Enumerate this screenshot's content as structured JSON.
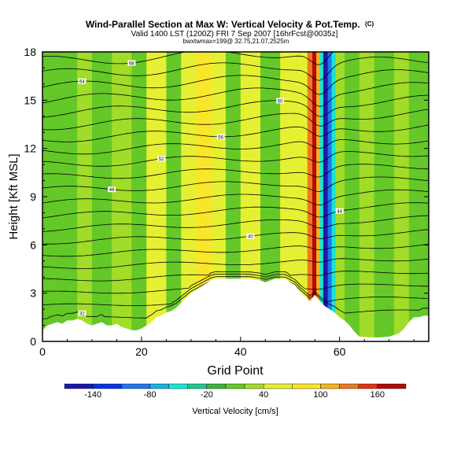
{
  "chart_data": {
    "type": "heatmap",
    "title": "Wind-Parallel Section at Max W: Vertical Velocity & Pot.Temp.",
    "title_mark": "(C)",
    "subtitle": "Valid 1400 LST (1200Z) FRI 7 Sep 2007 [16hrFcst@0035z]",
    "subtitle2": "bwxtwmax=199@ 32.75,21.07,2525m",
    "xlabel": "Grid Point",
    "ylabel": "Height [Kft MSL]",
    "xlim": [
      0,
      78
    ],
    "ylim": [
      0,
      18
    ],
    "xticks": [
      "0",
      "20",
      "40",
      "60"
    ],
    "xtick_values": [
      0,
      20,
      40,
      60
    ],
    "yticks": [
      "0",
      "3",
      "6",
      "9",
      "12",
      "15",
      "18"
    ],
    "ytick_values": [
      0,
      3,
      6,
      9,
      12,
      15,
      18
    ],
    "colorbar": {
      "label": "Vertical Velocity [cm/s]",
      "tick_labels": [
        "-140",
        "-80",
        "-20",
        "40",
        "100",
        "160"
      ],
      "tick_values": [
        -140,
        -80,
        -20,
        40,
        100,
        160
      ],
      "range": [
        -170,
        190
      ],
      "bins": [
        {
          "from": -170,
          "to": -140,
          "color": "#1a1aa8"
        },
        {
          "from": -140,
          "to": -110,
          "color": "#0a32e6"
        },
        {
          "from": -110,
          "to": -80,
          "color": "#1e78f0"
        },
        {
          "from": -80,
          "to": -60,
          "color": "#14b4e6"
        },
        {
          "from": -60,
          "to": -40,
          "color": "#19e6d2"
        },
        {
          "from": -40,
          "to": -20,
          "color": "#1ec88c"
        },
        {
          "from": -20,
          "to": 0,
          "color": "#3cb43c"
        },
        {
          "from": 0,
          "to": 20,
          "color": "#64c828"
        },
        {
          "from": 20,
          "to": 40,
          "color": "#a0dc28"
        },
        {
          "from": 40,
          "to": 70,
          "color": "#e6f032"
        },
        {
          "from": 70,
          "to": 100,
          "color": "#fae628"
        },
        {
          "from": 100,
          "to": 120,
          "color": "#f5b41e"
        },
        {
          "from": 120,
          "to": 140,
          "color": "#f0781e"
        },
        {
          "from": 140,
          "to": 160,
          "color": "#e63214"
        },
        {
          "from": 160,
          "to": 190,
          "color": "#b40a0a"
        }
      ]
    },
    "columns": [
      {
        "x0": 0,
        "x1": 4,
        "value": 10
      },
      {
        "x0": 4,
        "x1": 7,
        "value": 2
      },
      {
        "x0": 7,
        "x1": 10,
        "value": 35
      },
      {
        "x0": 10,
        "x1": 14,
        "value": 8
      },
      {
        "x0": 14,
        "x1": 18,
        "value": 30
      },
      {
        "x0": 18,
        "x1": 21,
        "value": 10
      },
      {
        "x0": 21,
        "x1": 25,
        "value": 45
      },
      {
        "x0": 25,
        "x1": 28,
        "value": 15
      },
      {
        "x0": 28,
        "x1": 31,
        "value": 40
      },
      {
        "x0": 31,
        "x1": 34,
        "value": 75
      },
      {
        "x0": 34,
        "x1": 37,
        "value": 45
      },
      {
        "x0": 37,
        "x1": 40,
        "value": 10
      },
      {
        "x0": 40,
        "x1": 44,
        "value": 50
      },
      {
        "x0": 44,
        "x1": 48,
        "value": 15
      },
      {
        "x0": 48,
        "x1": 52,
        "value": 45
      },
      {
        "x0": 52,
        "x1": 53.5,
        "value": 60
      },
      {
        "x0": 53.5,
        "x1": 54.5,
        "value": 130
      },
      {
        "x0": 54.5,
        "x1": 55.3,
        "value": 170
      },
      {
        "x0": 55.3,
        "x1": 56,
        "value": 110
      },
      {
        "x0": 56,
        "x1": 56.7,
        "value": -60
      },
      {
        "x0": 56.7,
        "x1": 57.6,
        "value": -150
      },
      {
        "x0": 57.6,
        "x1": 58.4,
        "value": -90
      },
      {
        "x0": 58.4,
        "x1": 59.2,
        "value": -45
      },
      {
        "x0": 59.2,
        "x1": 61,
        "value": 30
      },
      {
        "x0": 61,
        "x1": 64,
        "value": 5
      },
      {
        "x0": 64,
        "x1": 67,
        "value": 35
      },
      {
        "x0": 67,
        "x1": 71,
        "value": 5
      },
      {
        "x0": 71,
        "x1": 74,
        "value": 30
      },
      {
        "x0": 74,
        "x1": 78,
        "value": 10
      }
    ],
    "terrain": [
      [
        0,
        0.7
      ],
      [
        1,
        1.0
      ],
      [
        2,
        1.1
      ],
      [
        3,
        1.2
      ],
      [
        4,
        1.1
      ],
      [
        5,
        1.3
      ],
      [
        6,
        1.3
      ],
      [
        7,
        1.4
      ],
      [
        8,
        1.3
      ],
      [
        9,
        1.1
      ],
      [
        10,
        1.0
      ],
      [
        11,
        1.1
      ],
      [
        12,
        1.2
      ],
      [
        13,
        1.0
      ],
      [
        14,
        1.0
      ],
      [
        15,
        1.1
      ],
      [
        16,
        0.9
      ],
      [
        17,
        0.8
      ],
      [
        18,
        0.7
      ],
      [
        19,
        0.7
      ],
      [
        20,
        0.8
      ],
      [
        21,
        1.0
      ],
      [
        22,
        1.2
      ],
      [
        23,
        1.5
      ],
      [
        24,
        1.6
      ],
      [
        25,
        1.8
      ],
      [
        26,
        1.9
      ],
      [
        27,
        2.1
      ],
      [
        28,
        2.4
      ],
      [
        29,
        2.7
      ],
      [
        30,
        3.0
      ],
      [
        31,
        3.2
      ],
      [
        32,
        3.4
      ],
      [
        33,
        3.6
      ],
      [
        34,
        3.8
      ],
      [
        35,
        3.9
      ],
      [
        36,
        3.9
      ],
      [
        38,
        3.9
      ],
      [
        40,
        3.9
      ],
      [
        42,
        3.9
      ],
      [
        44,
        3.8
      ],
      [
        45,
        3.7
      ],
      [
        46,
        3.8
      ],
      [
        47,
        3.9
      ],
      [
        48,
        3.9
      ],
      [
        49,
        3.9
      ],
      [
        50,
        3.7
      ],
      [
        51,
        3.5
      ],
      [
        52,
        3.1
      ],
      [
        53,
        2.8
      ],
      [
        54,
        2.5
      ],
      [
        55,
        2.9
      ],
      [
        56,
        2.5
      ],
      [
        57,
        2.2
      ],
      [
        58,
        2.0
      ],
      [
        59,
        1.8
      ],
      [
        60,
        1.5
      ],
      [
        61,
        1.3
      ],
      [
        62,
        1.0
      ],
      [
        63,
        0.6
      ],
      [
        64,
        0.3
      ],
      [
        66,
        0.25
      ],
      [
        68,
        0.25
      ],
      [
        70,
        0.3
      ],
      [
        72,
        0.5
      ],
      [
        73,
        0.8
      ],
      [
        74,
        1.2
      ],
      [
        75,
        1.5
      ],
      [
        76,
        1.5
      ],
      [
        77,
        1.6
      ],
      [
        78,
        1.6
      ]
    ],
    "isentropes": [
      {
        "base": 1.4,
        "label": "32"
      },
      {
        "base": 2.2,
        "label": ""
      },
      {
        "base": 3.0,
        "label": ""
      },
      {
        "base": 3.8,
        "label": ""
      },
      {
        "base": 4.6,
        "label": ""
      },
      {
        "base": 5.4,
        "label": ""
      },
      {
        "base": 6.2,
        "label": "40"
      },
      {
        "base": 7.0,
        "label": ""
      },
      {
        "base": 7.8,
        "label": "44"
      },
      {
        "base": 8.6,
        "label": ""
      },
      {
        "base": 9.4,
        "label": "48"
      },
      {
        "base": 10.2,
        "label": ""
      },
      {
        "base": 11.0,
        "label": "52"
      },
      {
        "base": 11.8,
        "label": ""
      },
      {
        "base": 12.6,
        "label": "56"
      },
      {
        "base": 13.4,
        "label": ""
      },
      {
        "base": 14.2,
        "label": "60"
      },
      {
        "base": 15.0,
        "label": ""
      },
      {
        "base": 15.8,
        "label": "64"
      },
      {
        "base": 16.6,
        "label": ""
      },
      {
        "base": 17.4,
        "label": "68"
      }
    ]
  }
}
